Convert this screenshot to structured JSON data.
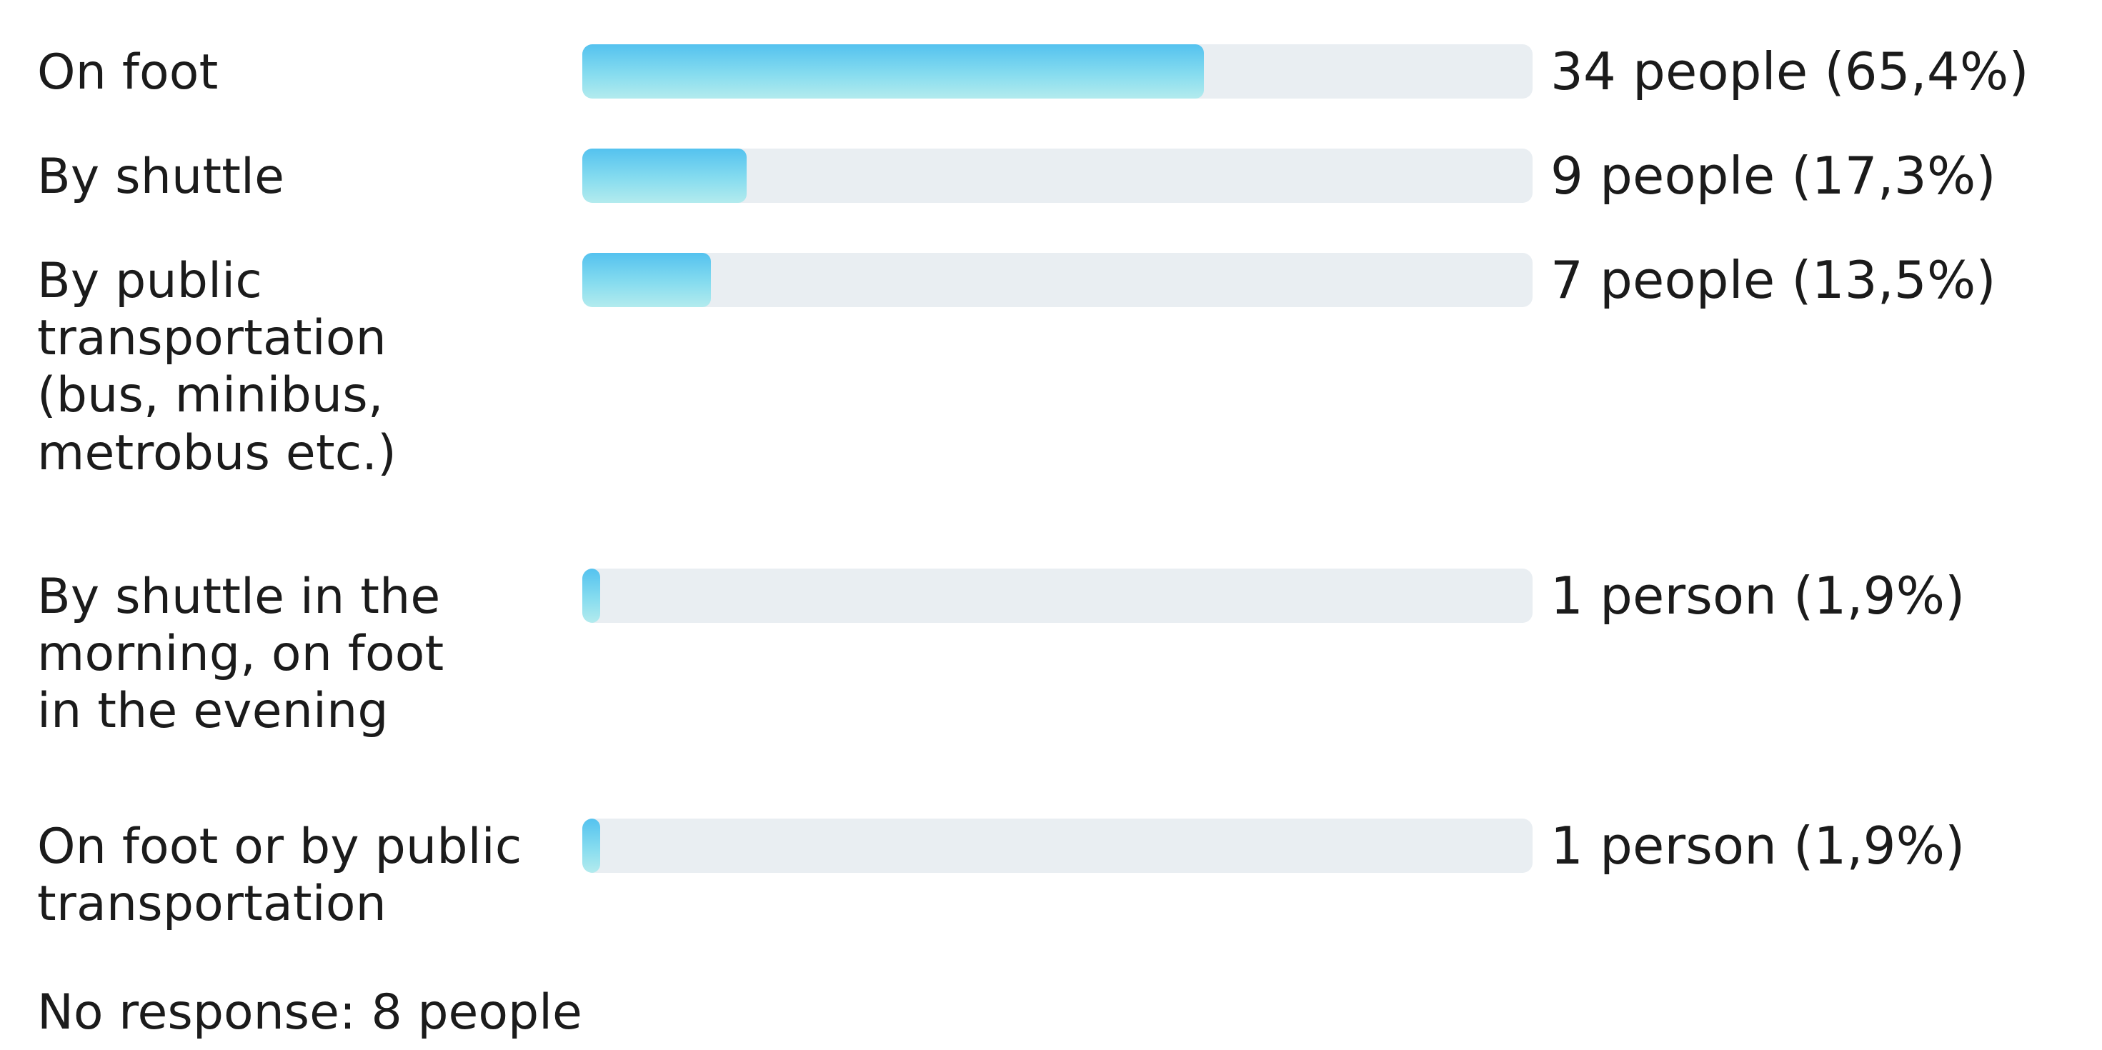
{
  "chart_data": {
    "type": "bar",
    "orientation": "horizontal",
    "categories": [
      "On foot",
      "By shuttle",
      "By public\ntransportation\n(bus, minibus,\nmetrobus etc.)",
      "By shuttle in the\nmorning, on foot\nin the evening",
      "On foot or by public\ntransportation"
    ],
    "values": [
      34,
      9,
      7,
      1,
      1
    ],
    "percentages": [
      65.4,
      17.3,
      13.5,
      1.9,
      1.9
    ],
    "value_labels": [
      "34 people (65,4%)",
      "9 people (17,3%)",
      "7 people (13,5%)",
      "1 person (1,9%)",
      "1 person (1,9%)"
    ],
    "xlim": [
      0,
      100
    ],
    "grid": false,
    "legend": "none",
    "footer": "No response: 8 people",
    "colors": {
      "bar_fill_start": "#54c2ef",
      "bar_fill_end": "#b3ebee",
      "track": "#e9eef2",
      "text": "#1b1b1b"
    }
  }
}
